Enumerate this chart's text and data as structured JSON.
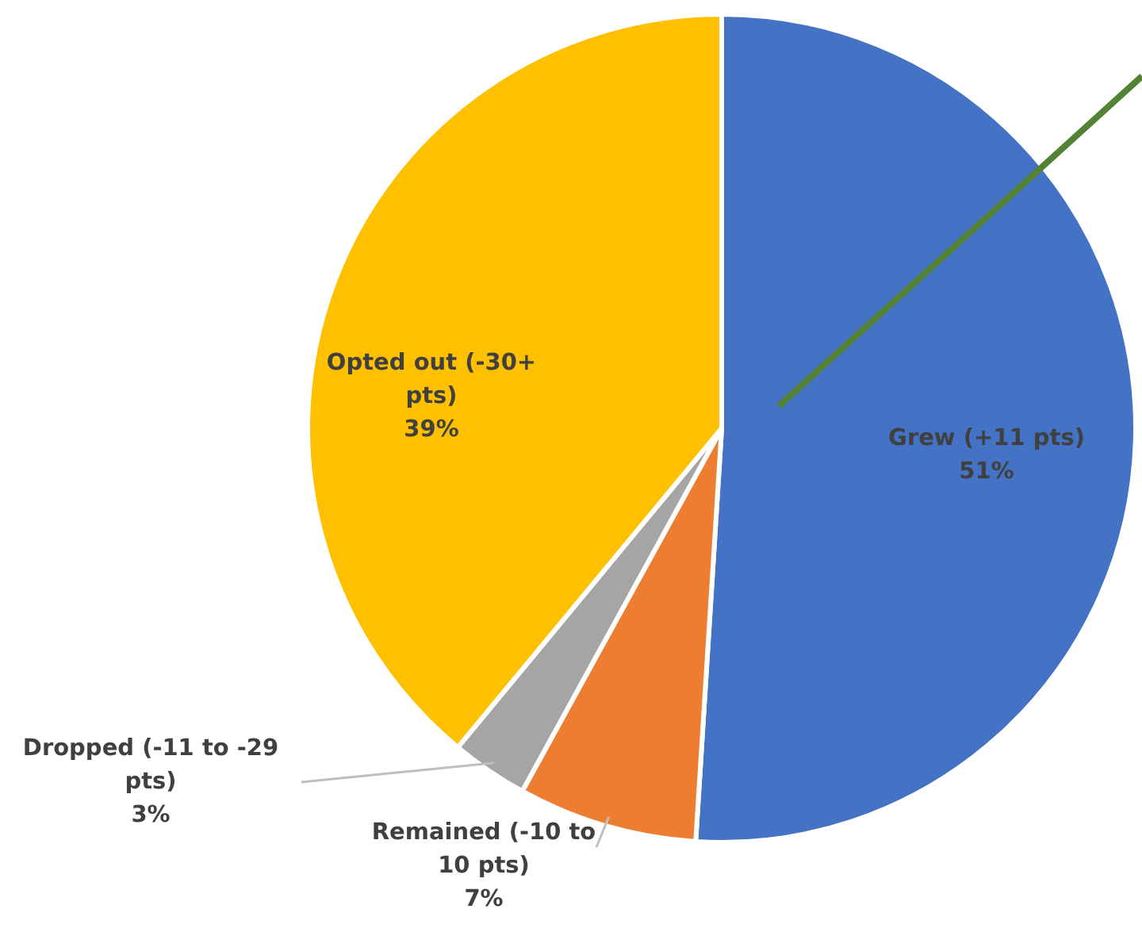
{
  "chart_data": {
    "type": "pie",
    "categories": [
      "Grew (+11 pts)",
      "Remained (-10 to 10 pts)",
      "Dropped (-11 to -29 pts)",
      "Opted out (-30+ pts)"
    ],
    "values": [
      51,
      7,
      3,
      39
    ],
    "colors": [
      "#4472c4",
      "#ed7d31",
      "#a5a5a5",
      "#ffc000"
    ],
    "value_labels": [
      "51%",
      "7%",
      "3%",
      "39%"
    ]
  }
}
